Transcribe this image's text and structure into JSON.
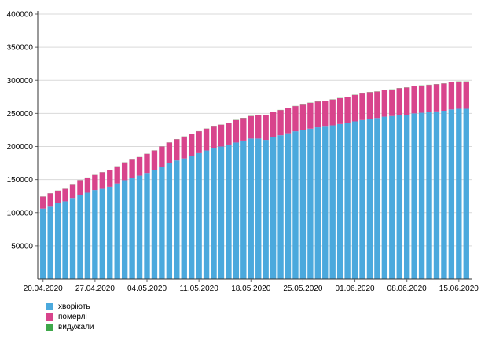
{
  "chart_data": {
    "type": "bar",
    "stacked": true,
    "ylim": [
      0,
      400000
    ],
    "yticks": [
      50000,
      100000,
      150000,
      200000,
      250000,
      300000,
      350000,
      400000
    ],
    "xtick_labels": [
      "20.04.2020",
      "27.04.2020",
      "04.05.2020",
      "11.05.2020",
      "18.05.2020",
      "25.05.2020",
      "01.06.2020",
      "08.06.2020",
      "15.06.2020"
    ],
    "grid": true,
    "legend_position": "bottom-left",
    "series": [
      {
        "name": "хворіють",
        "color": "#4ba9dd",
        "values": [
          106000,
          110000,
          114000,
          117000,
          122000,
          127000,
          130000,
          134000,
          137000,
          139000,
          144000,
          149000,
          152000,
          156000,
          160000,
          164000,
          169000,
          175000,
          179000,
          182000,
          186000,
          190000,
          194000,
          197000,
          200000,
          203000,
          206000,
          209000,
          212000,
          212000,
          210000,
          214000,
          217000,
          220000,
          223000,
          225000,
          227000,
          229000,
          230000,
          232000,
          234000,
          236000,
          238000,
          240000,
          242000,
          243000,
          245000,
          246000,
          247000,
          248000,
          250000,
          251000,
          252000,
          253000,
          254000,
          256000,
          257000,
          257000
        ]
      },
      {
        "name": "померлі",
        "color": "#d8448c",
        "values": [
          18000,
          19000,
          19000,
          20000,
          21000,
          22000,
          23000,
          23000,
          24000,
          25000,
          26000,
          27000,
          28000,
          28000,
          29000,
          30000,
          31000,
          31000,
          32000,
          33000,
          33000,
          33000,
          33000,
          33000,
          33000,
          33000,
          34000,
          34000,
          34000,
          35000,
          37000,
          38000,
          38000,
          38000,
          38000,
          38000,
          39000,
          39000,
          39000,
          39000,
          39000,
          39000,
          40000,
          40000,
          40000,
          40000,
          40000,
          40000,
          41000,
          41000,
          41000,
          41000,
          41000,
          41000,
          41000,
          41000,
          41000,
          41000
        ]
      },
      {
        "name": "видужали",
        "color": "#3ea84a",
        "values": [
          200,
          200,
          200,
          200,
          200,
          200,
          200,
          200,
          200,
          200,
          200,
          200,
          200,
          200,
          200,
          200,
          200,
          200,
          200,
          200,
          200,
          200,
          200,
          200,
          200,
          200,
          300,
          300,
          300,
          300,
          300,
          300,
          300,
          300,
          300,
          300,
          300,
          300,
          300,
          300,
          300,
          300,
          300,
          300,
          300,
          300,
          300,
          300,
          300,
          300,
          300,
          300,
          300,
          300,
          300,
          300,
          300,
          300
        ]
      }
    ]
  }
}
